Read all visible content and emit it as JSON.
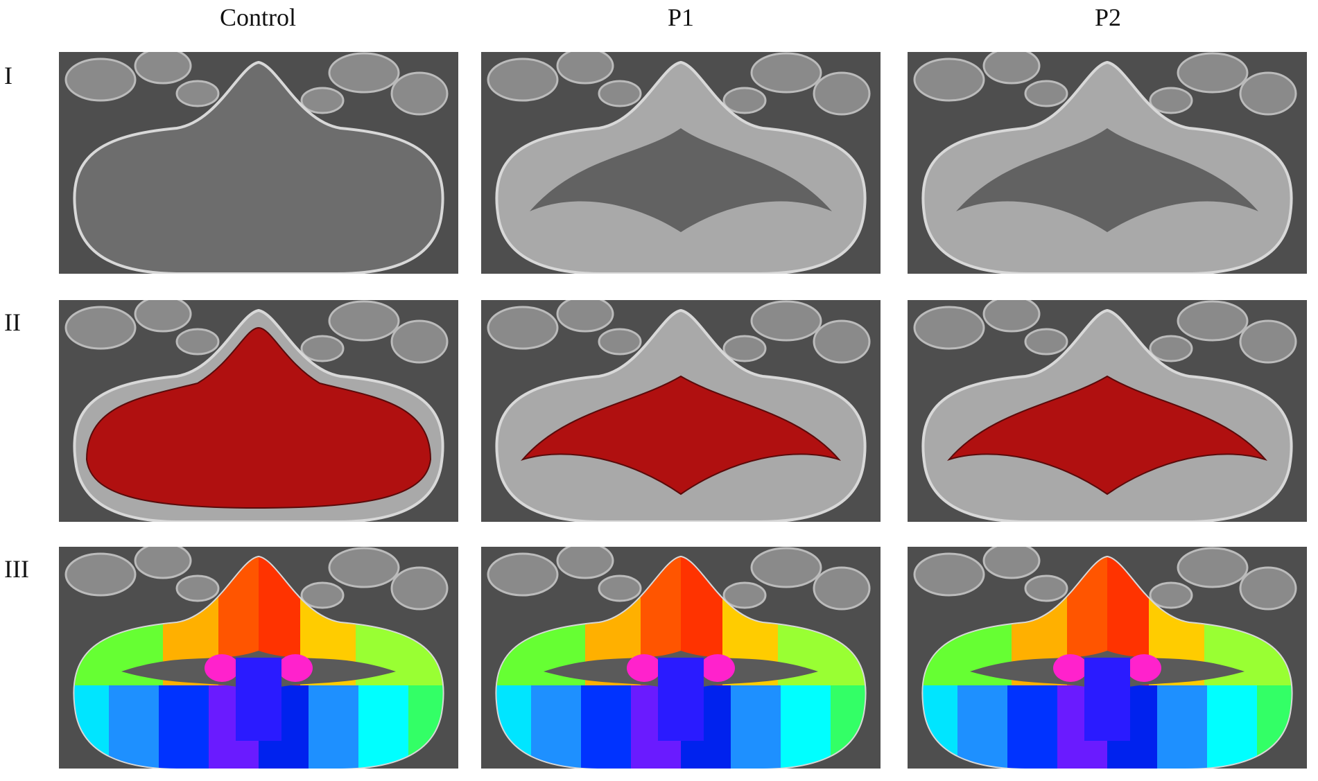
{
  "headers": {
    "columns": [
      "Control",
      "P1",
      "P2"
    ],
    "rows": [
      "I",
      "II",
      "III"
    ]
  }
}
